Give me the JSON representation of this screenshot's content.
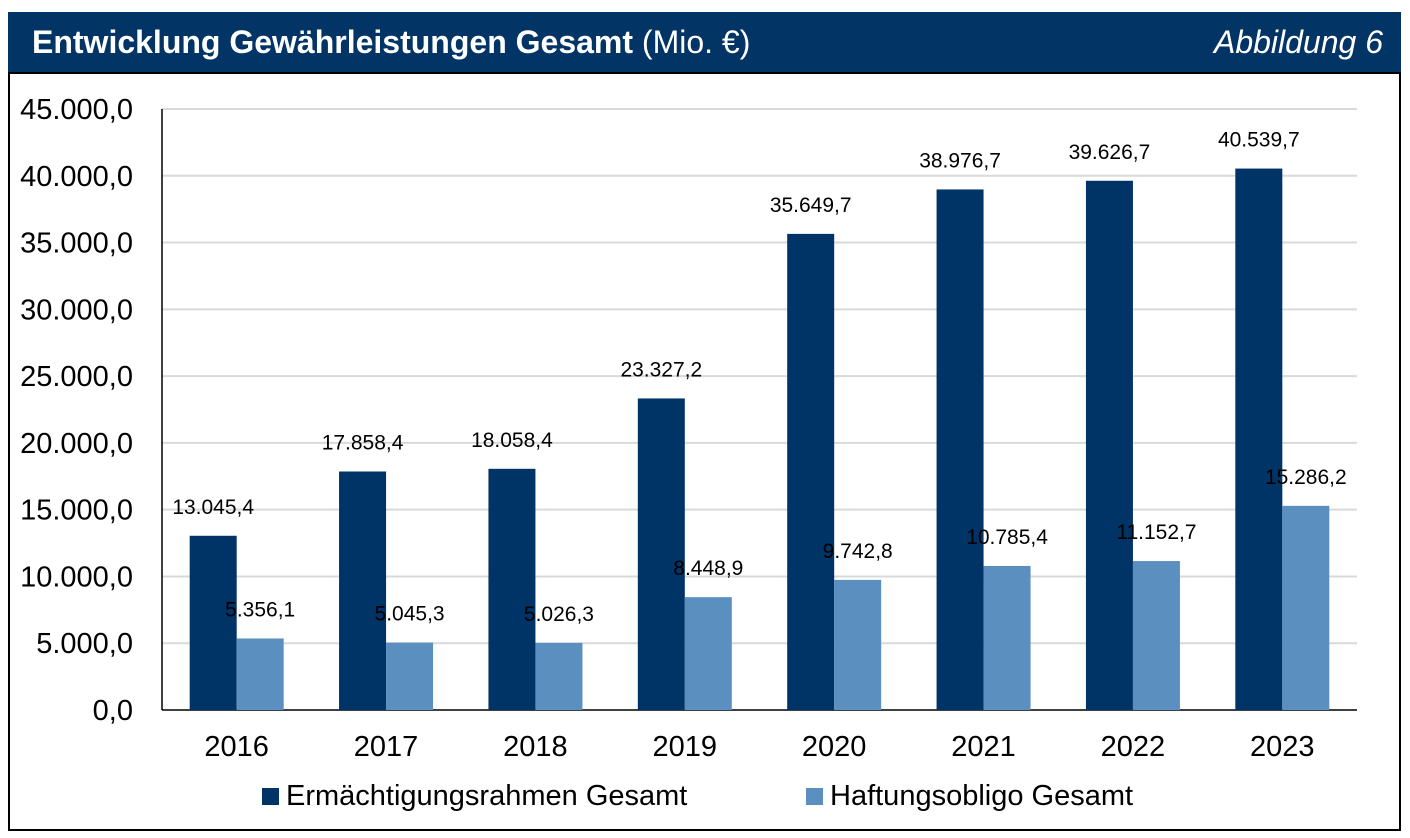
{
  "header": {
    "title_bold": "Entwicklung Gewährleistungen Gesamt",
    "title_unit": " (Mio. €)",
    "figure_label": "Abbildung 6"
  },
  "colors": {
    "header_bg": "#023466",
    "series_dark": "#003366",
    "series_light": "#5A8FC0",
    "grid": "#D9D9D9"
  },
  "chart_data": {
    "type": "bar",
    "title": "Entwicklung Gewährleistungen Gesamt (Mio. €)",
    "xlabel": "",
    "ylabel": "",
    "ylim": [
      0,
      45000
    ],
    "ytick_step": 5000,
    "yticks": [
      "0,0",
      "5.000,0",
      "10.000,0",
      "15.000,0",
      "20.000,0",
      "25.000,0",
      "30.000,0",
      "35.000,0",
      "40.000,0",
      "45.000,0"
    ],
    "grid": true,
    "legend_position": "bottom",
    "categories": [
      "2016",
      "2017",
      "2018",
      "2019",
      "2020",
      "2021",
      "2022",
      "2023"
    ],
    "series": [
      {
        "name": "Ermächtigungsrahmen Gesamt",
        "values": [
          13045.4,
          17858.4,
          18058.4,
          23327.2,
          35649.7,
          38976.7,
          39626.7,
          40539.7
        ],
        "labels": [
          "13.045,4",
          "17.858,4",
          "18.058,4",
          "23.327,2",
          "35.649,7",
          "38.976,7",
          "39.626,7",
          "40.539,7"
        ]
      },
      {
        "name": "Haftungsobligo Gesamt",
        "values": [
          5356.1,
          5045.3,
          5026.3,
          8448.9,
          9742.8,
          10785.4,
          11152.7,
          15286.2
        ],
        "labels": [
          "5.356,1",
          "5.045,3",
          "5.026,3",
          "8.448,9",
          "9.742,8",
          "10.785,4",
          "11.152,7",
          "15.286,2"
        ]
      }
    ]
  }
}
